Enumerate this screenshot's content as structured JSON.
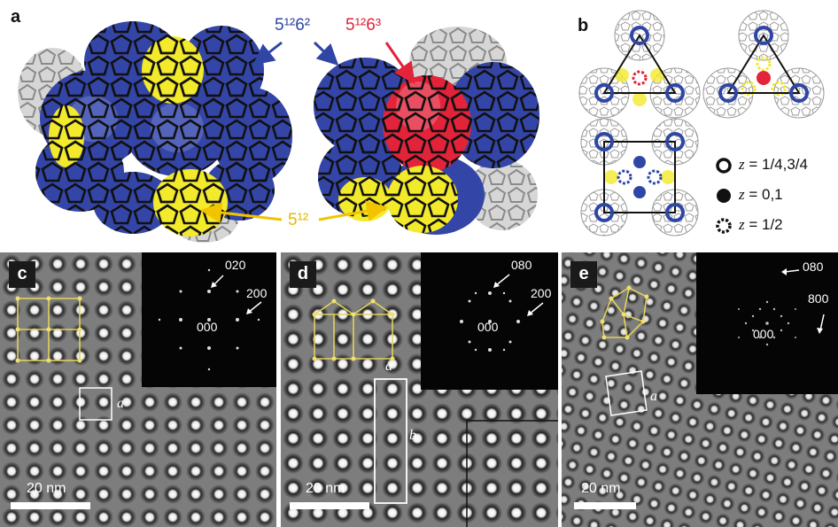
{
  "panels": {
    "a": {
      "label": "a",
      "cage_left": "5¹²6²",
      "cage_right": "5¹²6³",
      "cage_bottom": "5¹²",
      "colors": {
        "cage_5_12_6_2": "#3445a8",
        "cage_5_12_6_3": "#e2233a",
        "cage_5_12": "#f2ea2a"
      }
    },
    "b": {
      "label": "b",
      "legend": [
        {
          "symbol": "open-circle",
          "text_var": "z",
          "text_value": " = 1/4,3/4"
        },
        {
          "symbol": "filled-circle",
          "text_var": "z",
          "text_value": " = 0,1"
        },
        {
          "symbol": "dashed-circle",
          "text_var": "z",
          "text_value": " = 1/2"
        }
      ]
    },
    "c": {
      "label": "c",
      "fft_labels": [
        "020",
        "200",
        "000"
      ],
      "cell_label": "a",
      "scale_bar": "20 nm"
    },
    "d": {
      "label": "d",
      "fft_labels": [
        "080",
        "200",
        "000"
      ],
      "cell_labels": [
        "a",
        "b"
      ],
      "scale_bar": "20 nm"
    },
    "e": {
      "label": "e",
      "fft_labels": [
        "080",
        "800",
        "000"
      ],
      "cell_label": "a",
      "scale_bar": "20 nm"
    }
  }
}
